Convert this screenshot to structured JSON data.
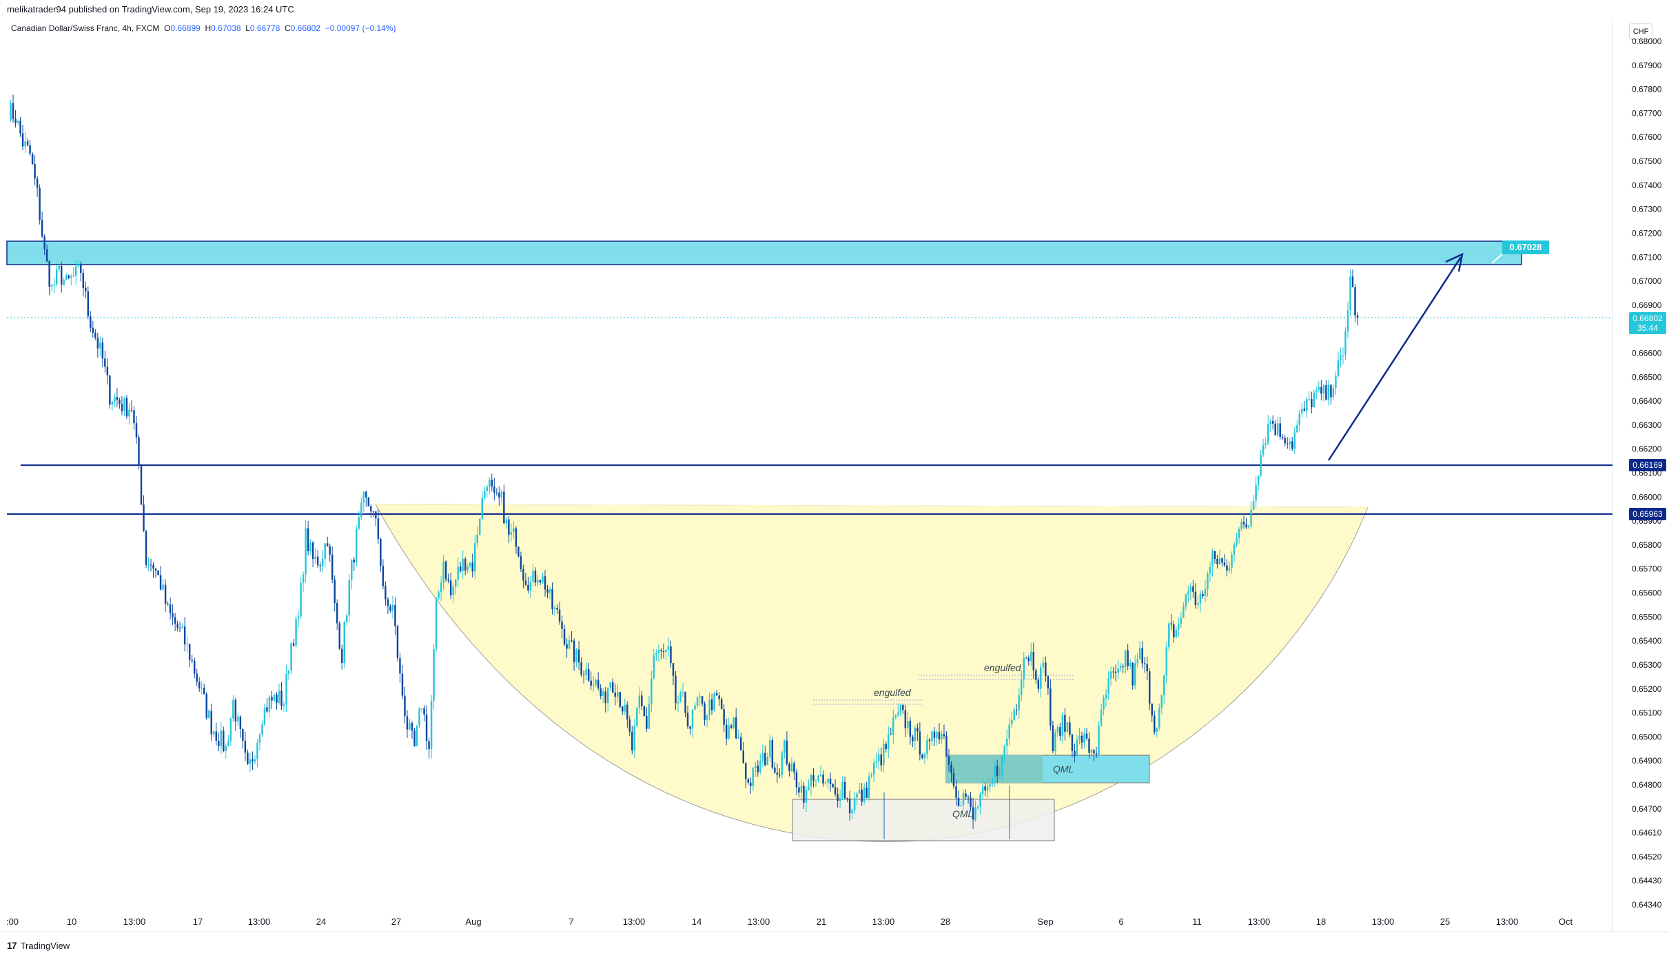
{
  "header": {
    "published": "melikatrader94 published on TradingView.com, Sep 19, 2023 16:24 UTC"
  },
  "legend": {
    "symbol": "Canadian Dollar/Swiss Franc, 4h, FXCM",
    "open_label": "O",
    "open": "0.66899",
    "high_label": "H",
    "high": "0.67038",
    "low_label": "L",
    "low": "0.66778",
    "close_label": "C",
    "close": "0.66802",
    "change": "−0.00097 (−0.14%)"
  },
  "currency_button": "CHF",
  "price_axis": [
    "0.68000",
    "0.67900",
    "0.67800",
    "0.67700",
    "0.67600",
    "0.67500",
    "0.67400",
    "0.67300",
    "0.67200",
    "0.67100",
    "0.67000",
    "0.66900",
    "0.66700",
    "0.66600",
    "0.66500",
    "0.66400",
    "0.66300",
    "0.66200",
    "0.66100",
    "0.66000",
    "0.65900",
    "0.65800",
    "0.65700",
    "0.65600",
    "0.65500",
    "0.65400",
    "0.65300",
    "0.65200",
    "0.65100",
    "0.65000",
    "0.64900",
    "0.64800",
    "0.64700",
    "0.64610",
    "0.64520",
    "0.64430",
    "0.64340"
  ],
  "price_tags": {
    "current": "0.66802",
    "countdown": "35:44",
    "level_upper": "0.66169",
    "level_lower": "0.65963",
    "target": "0.67028"
  },
  "time_axis": [
    ":00",
    "10",
    "13:00",
    "17",
    "13:00",
    "24",
    "27",
    "Aug",
    "7",
    "13:00",
    "14",
    "13:00",
    "21",
    "13:00",
    "28",
    "Sep",
    "6",
    "11",
    "13:00",
    "18",
    "13:00",
    "25",
    "13:00",
    "Oct"
  ],
  "annotations": {
    "engulfed_1": "engulfed",
    "engulfed_2": "engulfed",
    "qml_1": "QML",
    "qml_2": "QML"
  },
  "colors": {
    "bull_candle": "#26c6da",
    "bear_candle": "#0d47a1",
    "resistance_zone": "#80deea",
    "cup_fill": "#fff9c4",
    "qml_green": "#80cbc4",
    "level_line": "#0d2a8a"
  },
  "footer": {
    "brand": "TradingView"
  },
  "chart_data": {
    "type": "candlestick",
    "symbol": "Canadian Dollar/Swiss Franc",
    "timeframe": "4h",
    "ylim": [
      0.643,
      0.6805
    ],
    "levels": [
      0.66169,
      0.65963
    ],
    "resistance_zone": [
      0.67028,
      0.6713
    ],
    "last_close": 0.66802,
    "path": [
      [
        0,
        0.6771
      ],
      [
        3,
        0.6768
      ],
      [
        6,
        0.6757
      ],
      [
        9,
        0.6752
      ],
      [
        12,
        0.6735
      ],
      [
        15,
        0.671
      ],
      [
        18,
        0.6695
      ],
      [
        21,
        0.6702
      ],
      [
        24,
        0.6697
      ],
      [
        27,
        0.67
      ],
      [
        30,
        0.6703
      ],
      [
        33,
        0.6685
      ],
      [
        36,
        0.6675
      ],
      [
        39,
        0.6665
      ],
      [
        42,
        0.665
      ],
      [
        45,
        0.6648
      ],
      [
        48,
        0.6645
      ],
      [
        51,
        0.6645
      ],
      [
        54,
        0.662
      ],
      [
        57,
        0.658
      ],
      [
        60,
        0.6578
      ],
      [
        63,
        0.657
      ],
      [
        66,
        0.6558
      ],
      [
        69,
        0.6553
      ],
      [
        72,
        0.6548
      ],
      [
        75,
        0.654
      ],
      [
        78,
        0.653
      ],
      [
        81,
        0.652
      ],
      [
        84,
        0.651
      ],
      [
        87,
        0.6505
      ],
      [
        90,
        0.65
      ],
      [
        93,
        0.652
      ],
      [
        96,
        0.6505
      ],
      [
        99,
        0.649
      ],
      [
        102,
        0.65
      ],
      [
        105,
        0.6515
      ],
      [
        108,
        0.652
      ],
      [
        111,
        0.6522
      ],
      [
        114,
        0.652
      ],
      [
        117,
        0.6545
      ],
      [
        120,
        0.6555
      ],
      [
        123,
        0.659
      ],
      [
        126,
        0.658
      ],
      [
        129,
        0.658
      ],
      [
        132,
        0.659
      ],
      [
        135,
        0.656
      ],
      [
        138,
        0.654
      ],
      [
        141,
        0.657
      ],
      [
        144,
        0.659
      ],
      [
        147,
        0.6605
      ],
      [
        150,
        0.6603
      ],
      [
        153,
        0.659
      ],
      [
        156,
        0.656
      ],
      [
        159,
        0.656
      ],
      [
        162,
        0.653
      ],
      [
        165,
        0.651
      ],
      [
        168,
        0.65
      ],
      [
        171,
        0.652
      ],
      [
        174,
        0.65
      ],
      [
        177,
        0.656
      ],
      [
        180,
        0.658
      ],
      [
        183,
        0.6565
      ],
      [
        186,
        0.6575
      ],
      [
        189,
        0.658
      ],
      [
        192,
        0.6578
      ],
      [
        195,
        0.66
      ],
      [
        198,
        0.6615
      ],
      [
        201,
        0.6605
      ],
      [
        204,
        0.6605
      ],
      [
        207,
        0.659
      ],
      [
        210,
        0.659
      ],
      [
        213,
        0.6575
      ],
      [
        216,
        0.657
      ],
      [
        219,
        0.6575
      ],
      [
        222,
        0.657
      ],
      [
        225,
        0.656
      ],
      [
        228,
        0.6555
      ],
      [
        231,
        0.6545
      ],
      [
        234,
        0.654
      ],
      [
        237,
        0.6535
      ],
      [
        240,
        0.6532
      ],
      [
        243,
        0.6528
      ],
      [
        246,
        0.652
      ],
      [
        249,
        0.653
      ],
      [
        252,
        0.6525
      ],
      [
        255,
        0.6515
      ],
      [
        258,
        0.65
      ],
      [
        261,
        0.652
      ],
      [
        264,
        0.651
      ],
      [
        267,
        0.654
      ],
      [
        270,
        0.654
      ],
      [
        273,
        0.654
      ],
      [
        276,
        0.652
      ],
      [
        279,
        0.652
      ],
      [
        282,
        0.651
      ],
      [
        285,
        0.652
      ],
      [
        288,
        0.6515
      ],
      [
        291,
        0.652
      ],
      [
        294,
        0.652
      ],
      [
        297,
        0.6505
      ],
      [
        300,
        0.651
      ],
      [
        303,
        0.65
      ],
      [
        306,
        0.6485
      ],
      [
        309,
        0.649
      ],
      [
        312,
        0.6495
      ],
      [
        315,
        0.65
      ],
      [
        318,
        0.649
      ],
      [
        321,
        0.65
      ],
      [
        324,
        0.649
      ],
      [
        327,
        0.6485
      ],
      [
        330,
        0.648
      ],
      [
        333,
        0.649
      ],
      [
        336,
        0.6485
      ],
      [
        339,
        0.6485
      ],
      [
        342,
        0.648
      ],
      [
        345,
        0.6485
      ],
      [
        348,
        0.6475
      ],
      [
        351,
        0.648
      ],
      [
        354,
        0.648
      ],
      [
        357,
        0.649
      ],
      [
        360,
        0.6495
      ],
      [
        363,
        0.65
      ],
      [
        366,
        0.651
      ],
      [
        369,
        0.6515
      ],
      [
        372,
        0.651
      ],
      [
        375,
        0.6505
      ],
      [
        378,
        0.65
      ],
      [
        381,
        0.65
      ],
      [
        384,
        0.651
      ],
      [
        387,
        0.6505
      ],
      [
        390,
        0.649
      ],
      [
        393,
        0.648
      ],
      [
        396,
        0.648
      ],
      [
        399,
        0.647
      ],
      [
        402,
        0.648
      ],
      [
        405,
        0.648
      ],
      [
        408,
        0.649
      ],
      [
        411,
        0.6495
      ],
      [
        414,
        0.651
      ],
      [
        417,
        0.652
      ],
      [
        420,
        0.654
      ],
      [
        423,
        0.654
      ],
      [
        426,
        0.653
      ],
      [
        429,
        0.6535
      ],
      [
        432,
        0.65
      ],
      [
        435,
        0.651
      ],
      [
        438,
        0.651
      ],
      [
        441,
        0.65
      ],
      [
        444,
        0.6505
      ],
      [
        447,
        0.65
      ],
      [
        450,
        0.65
      ],
      [
        453,
        0.652
      ],
      [
        456,
        0.653
      ],
      [
        459,
        0.653
      ],
      [
        462,
        0.654
      ],
      [
        465,
        0.653
      ],
      [
        468,
        0.654
      ],
      [
        471,
        0.653
      ],
      [
        474,
        0.651
      ],
      [
        477,
        0.652
      ],
      [
        480,
        0.655
      ],
      [
        483,
        0.655
      ],
      [
        486,
        0.656
      ],
      [
        489,
        0.657
      ],
      [
        492,
        0.656
      ],
      [
        495,
        0.657
      ],
      [
        498,
        0.658
      ],
      [
        501,
        0.658
      ],
      [
        504,
        0.6575
      ],
      [
        507,
        0.659
      ],
      [
        510,
        0.6593
      ],
      [
        513,
        0.6596
      ],
      [
        516,
        0.6615
      ],
      [
        519,
        0.663
      ],
      [
        522,
        0.664
      ],
      [
        525,
        0.6635
      ],
      [
        528,
        0.6633
      ],
      [
        531,
        0.663
      ],
      [
        534,
        0.664
      ],
      [
        537,
        0.6645
      ],
      [
        540,
        0.665
      ],
      [
        543,
        0.665
      ],
      [
        546,
        0.665
      ],
      [
        549,
        0.666
      ],
      [
        552,
        0.6665
      ],
      [
        555,
        0.67
      ],
      [
        558,
        0.668
      ]
    ]
  }
}
